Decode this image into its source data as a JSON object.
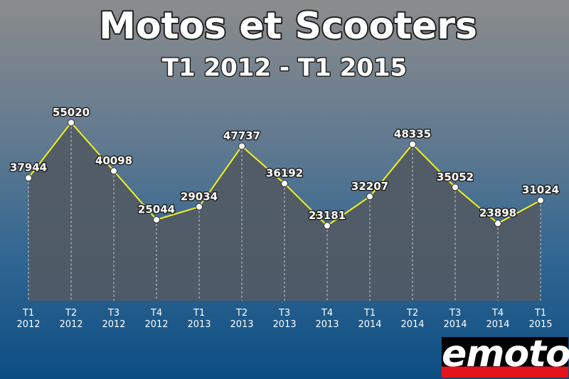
{
  "chart_data": {
    "type": "line",
    "title": "Motos et Scooters",
    "subtitle": "T1 2012 - T1 2015",
    "categories": [
      "T1 2012",
      "T2 2012",
      "T3 2012",
      "T4 2012",
      "T1 2013",
      "T2 2013",
      "T3 2013",
      "T4 2013",
      "T1 2014",
      "T2 2014",
      "T3 2014",
      "T4 2014",
      "T1 2015"
    ],
    "values": [
      37944,
      55020,
      40098,
      25044,
      29034,
      47737,
      36192,
      23181,
      32207,
      48335,
      35052,
      23898,
      31024
    ],
    "color": "#f2f21a"
  },
  "logo": "emoto"
}
